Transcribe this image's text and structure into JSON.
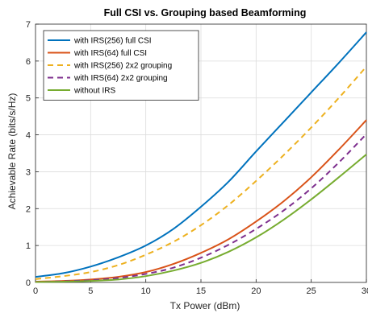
{
  "chart_data": {
    "type": "line",
    "title": "Full CSI vs. Grouping based Beamforming",
    "xlabel": "Tx Power (dBm)",
    "ylabel": "Achievable Rate (bits/s/Hz)",
    "xlim": [
      0,
      30
    ],
    "ylim": [
      0,
      7
    ],
    "xticks": [
      "0",
      "5",
      "10",
      "15",
      "20",
      "25",
      "30"
    ],
    "yticks": [
      "0",
      "1",
      "2",
      "3",
      "4",
      "5",
      "6",
      "7"
    ],
    "grid": true,
    "legend_position": "top-left",
    "x": [
      0,
      2.5,
      5,
      7.5,
      10,
      12.5,
      15,
      17.5,
      20,
      22.5,
      25,
      27.5,
      30
    ],
    "series": [
      {
        "name": "with IRS(256) full CSI",
        "color": "#0072BD",
        "style": "solid",
        "values": [
          0.15,
          0.25,
          0.43,
          0.68,
          1.0,
          1.45,
          2.05,
          2.73,
          3.55,
          4.35,
          5.15,
          5.95,
          6.78
        ]
      },
      {
        "name": "with IRS(64) full CSI",
        "color": "#D95319",
        "style": "solid",
        "values": [
          0.02,
          0.04,
          0.08,
          0.15,
          0.28,
          0.5,
          0.8,
          1.17,
          1.65,
          2.2,
          2.85,
          3.6,
          4.4
        ]
      },
      {
        "name": "with IRS(256) 2x2 grouping",
        "color": "#EDB120",
        "style": "dashed",
        "values": [
          0.09,
          0.17,
          0.28,
          0.47,
          0.75,
          1.1,
          1.55,
          2.1,
          2.75,
          3.45,
          4.2,
          5.0,
          5.85
        ]
      },
      {
        "name": "with IRS(64) 2x2 grouping",
        "color": "#7E2F8E",
        "style": "dashed",
        "values": [
          0.01,
          0.03,
          0.06,
          0.12,
          0.23,
          0.4,
          0.67,
          1.02,
          1.45,
          1.95,
          2.55,
          3.25,
          4.02
        ]
      },
      {
        "name": "without IRS",
        "color": "#77AC30",
        "style": "solid",
        "values": [
          0.01,
          0.02,
          0.04,
          0.08,
          0.17,
          0.32,
          0.53,
          0.83,
          1.22,
          1.7,
          2.25,
          2.85,
          3.47
        ]
      }
    ]
  }
}
